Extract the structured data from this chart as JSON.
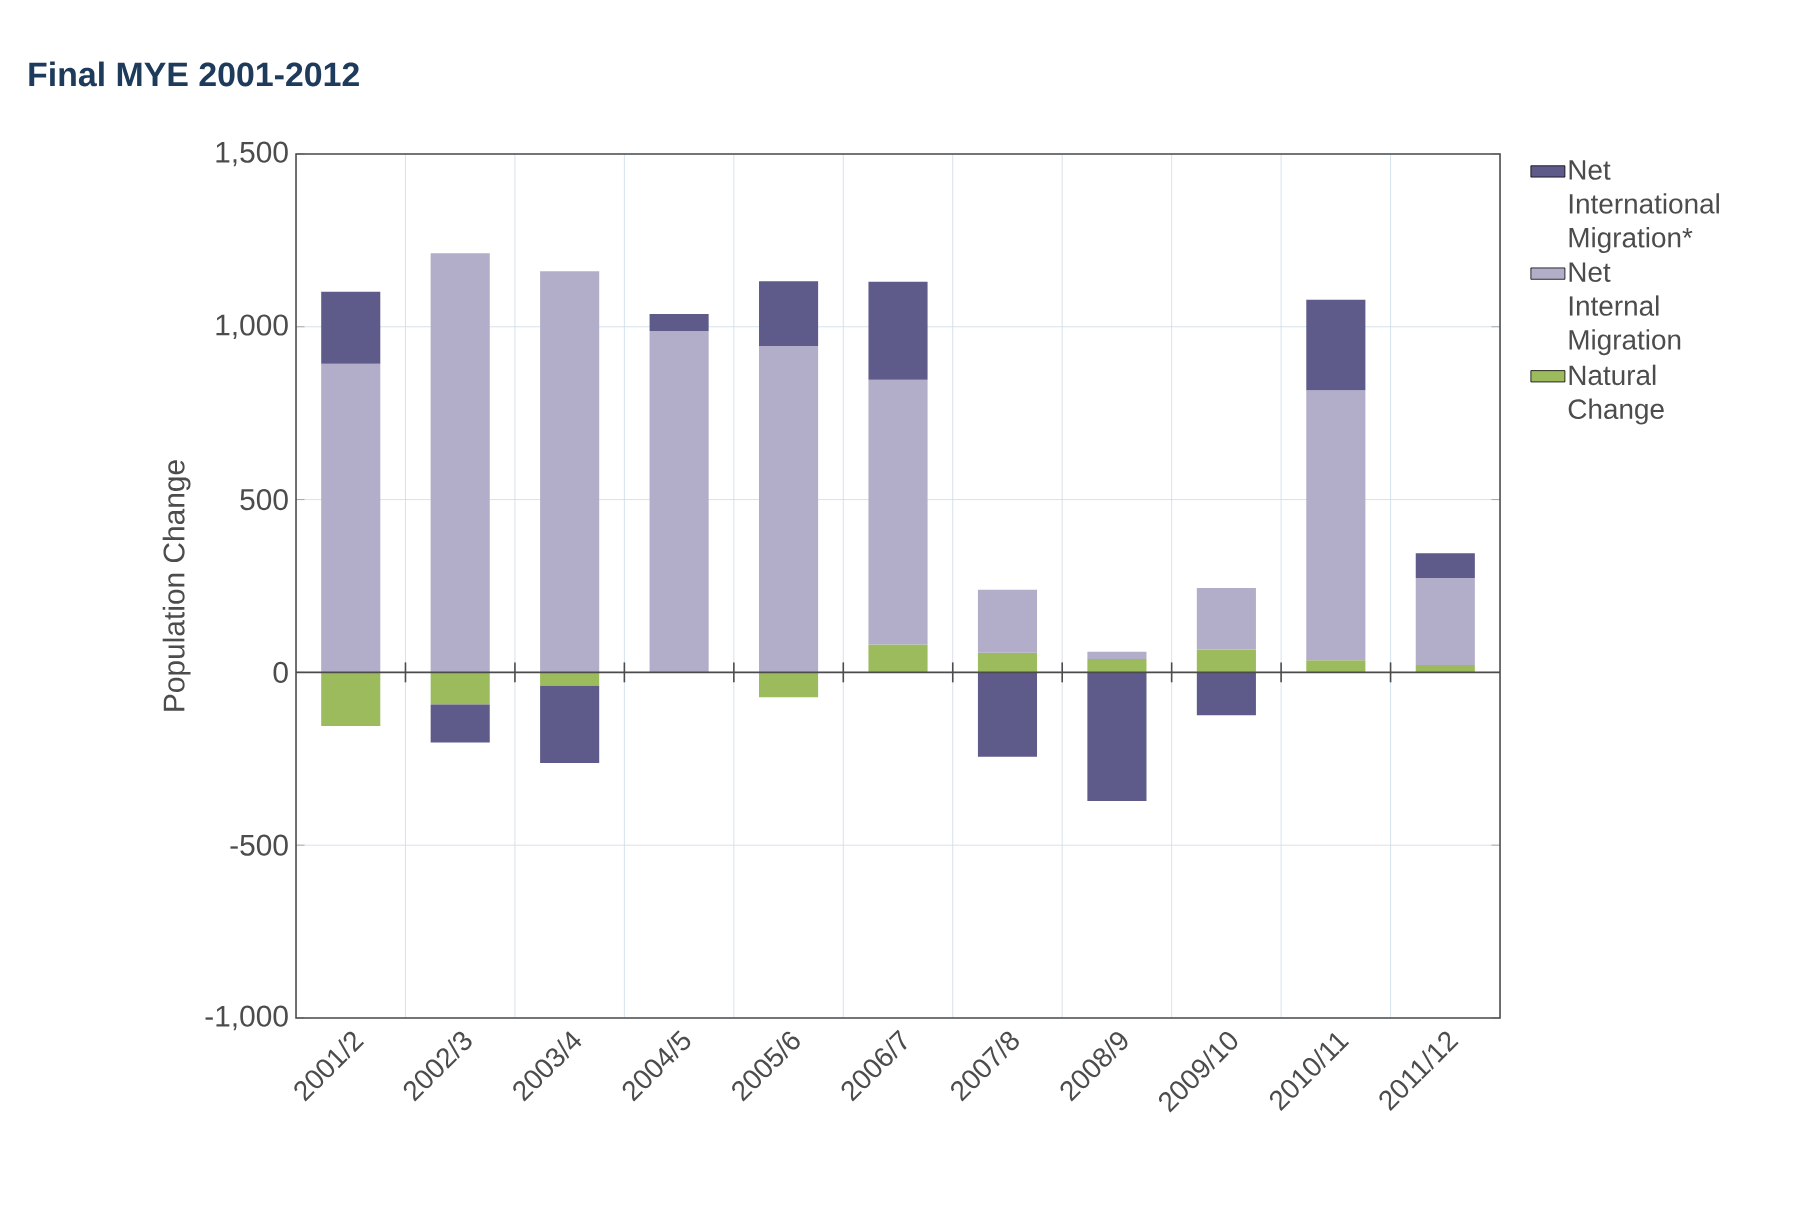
{
  "chart_data": {
    "type": "bar",
    "stacked": true,
    "title": "Final MYE 2001-2012",
    "ylabel": "Population Change",
    "categories": [
      "2001/2",
      "2002/3",
      "2003/4",
      "2004/5",
      "2005/6",
      "2006/7",
      "2007/8",
      "2008/9",
      "2009/10",
      "2010/11",
      "2011/12"
    ],
    "series": [
      {
        "name": "Natural Change",
        "color": "#9cbb5c",
        "values": [
          -155,
          -93,
          -39,
          0,
          -72,
          81,
          57,
          39,
          66,
          35,
          21
        ]
      },
      {
        "name": "Net Internal Migration",
        "color": "#b2adc8",
        "values": [
          893,
          1213,
          1161,
          988,
          944,
          766,
          182,
          21,
          178,
          781,
          252
        ]
      },
      {
        "name": "Net International Migration*",
        "color": "#5e5a8a",
        "values": [
          208,
          -110,
          -223,
          49,
          188,
          283,
          -244,
          -372,
          -124,
          262,
          72
        ]
      }
    ],
    "ylim": [
      -1000,
      1500
    ],
    "yticks": [
      {
        "value": -1000,
        "label": "-1,000"
      },
      -500,
      0,
      500,
      {
        "value": 1000,
        "label": "1,000"
      },
      {
        "value": 1500,
        "label": "1,500"
      }
    ],
    "grid": true,
    "legend": "right"
  }
}
